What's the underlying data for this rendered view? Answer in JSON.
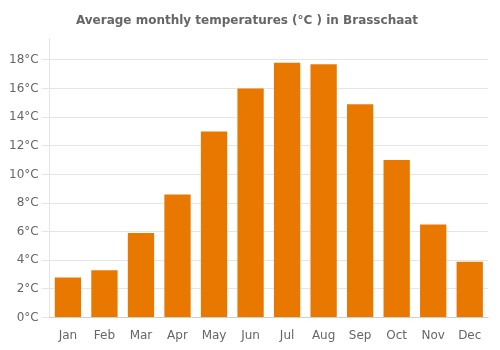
{
  "chart_data": {
    "type": "bar",
    "title": "Average monthly temperatures (°C ) in Brasschaat",
    "categories": [
      "Jan",
      "Feb",
      "Mar",
      "Apr",
      "May",
      "Jun",
      "Jul",
      "Aug",
      "Sep",
      "Oct",
      "Nov",
      "Dec"
    ],
    "values": [
      2.8,
      3.3,
      5.9,
      8.6,
      13.0,
      16.0,
      17.8,
      17.7,
      14.9,
      11.0,
      6.5,
      3.9
    ],
    "color": "#E87800",
    "ylim": [
      0,
      19.5
    ],
    "yticks": [
      {
        "value": 0,
        "label": "0°C"
      },
      {
        "value": 2,
        "label": "2°C"
      },
      {
        "value": 4,
        "label": "4°C"
      },
      {
        "value": 6,
        "label": "6°C"
      },
      {
        "value": 8,
        "label": "8°C"
      },
      {
        "value": 10,
        "label": "10°C"
      },
      {
        "value": 12,
        "label": "12°C"
      },
      {
        "value": 14,
        "label": "14°C"
      },
      {
        "value": 16,
        "label": "16°C"
      },
      {
        "value": 18,
        "label": "18°C"
      }
    ],
    "grid": true
  }
}
